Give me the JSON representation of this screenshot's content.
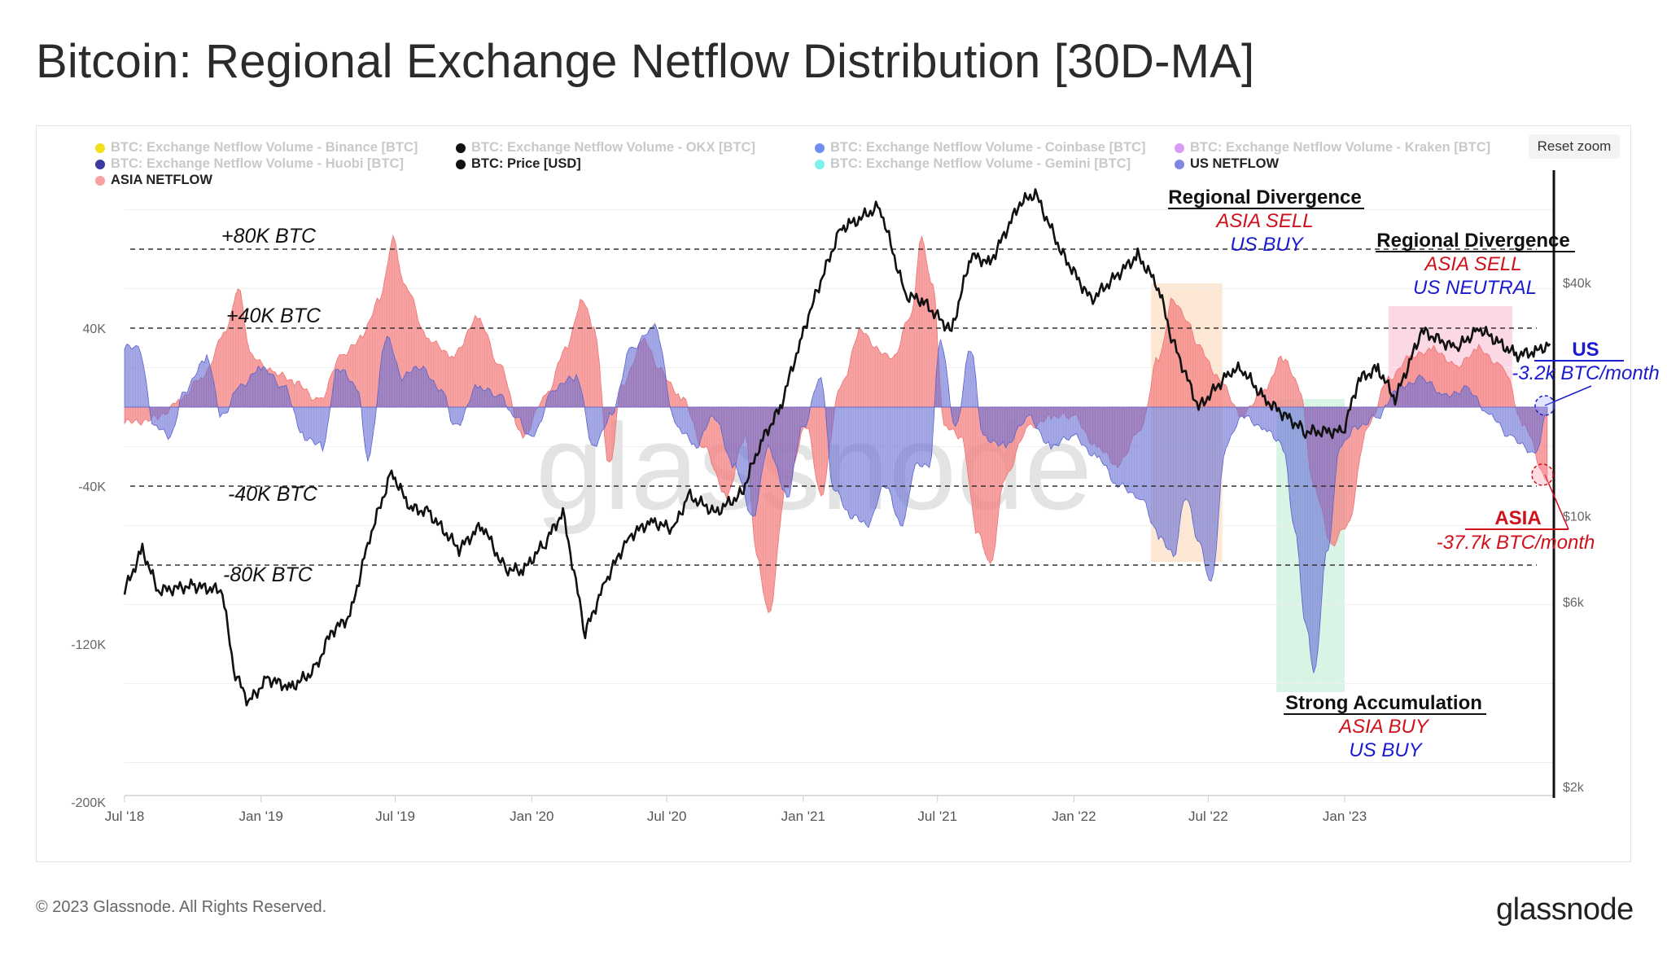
{
  "title": "Bitcoin: Regional Exchange Netflow Distribution [30D-MA]",
  "reset_zoom_label": "Reset zoom",
  "copyright": "© 2023 Glassnode. All Rights Reserved.",
  "brand": "glassnode",
  "watermark": "glassnode",
  "legend": [
    {
      "label": "BTC: Exchange Netflow Volume - Binance [BTC]",
      "color": "#f2e01b",
      "active": false
    },
    {
      "label": "BTC: Exchange Netflow Volume - OKX [BTC]",
      "color": "#111111",
      "active": false
    },
    {
      "label": "BTC: Exchange Netflow Volume - Coinbase [BTC]",
      "color": "#6f8ef0",
      "active": false
    },
    {
      "label": "BTC: Exchange Netflow Volume - Kraken [BTC]",
      "color": "#d79cf2",
      "active": false
    },
    {
      "label": "BTC: Exchange Netflow Volume - Huobi [BTC]",
      "color": "#3a3aa0",
      "active": false
    },
    {
      "label": "BTC: Price [USD]",
      "color": "#111111",
      "active": true
    },
    {
      "label": "BTC: Exchange Netflow Volume - Gemini [BTC]",
      "color": "#7ff0ee",
      "active": false
    },
    {
      "label": "US NETFLOW",
      "color": "#7f87e0",
      "active": true
    },
    {
      "label": "ASIA NETFLOW",
      "color": "#f6a0a0",
      "active": true
    }
  ],
  "annotations": {
    "lvl_p80": "+80K BTC",
    "lvl_p40": "+40K BTC",
    "lvl_m40": "-40K BTC",
    "lvl_m80": "-80K BTC",
    "div1_title": "Regional Divergence",
    "div1_l1": "ASIA SELL",
    "div1_l2": "US BUY",
    "div2_title": "Regional Divergence",
    "div2_l1": "ASIA SELL",
    "div2_l2": "US NEUTRAL",
    "acc_title": "Strong Accumulation",
    "acc_l1": "ASIA BUY",
    "acc_l2": "US BUY",
    "us_title": "US",
    "us_value": "-3.2k BTC/month",
    "asia_title": "ASIA",
    "asia_value": "-37.7k BTC/month"
  },
  "chart_data": {
    "type": "area",
    "x_type": "datetime",
    "x_range": [
      "2018-07-01",
      "2023-10-10"
    ],
    "x_ticks": [
      "Jul '18",
      "Jan '19",
      "Jul '19",
      "Jan '20",
      "Jul '20",
      "Jan '21",
      "Jul '21",
      "Jan '22",
      "Jul '22",
      "Jan '23"
    ],
    "y_left": {
      "label": "",
      "ticks": [
        "40K",
        "-40K",
        "-120K",
        "-200K"
      ],
      "tick_values": [
        40000,
        -40000,
        -120000,
        -200000
      ],
      "range": [
        -200000,
        120000
      ]
    },
    "y_right": {
      "label": "",
      "scale": "log",
      "ticks": [
        "$40k",
        "$10k",
        "$6k",
        "$2k"
      ],
      "tick_values": [
        40000,
        10000,
        6000,
        2000
      ]
    },
    "reference_lines": [
      80000,
      40000,
      -40000,
      -80000
    ],
    "highlight_bands": [
      {
        "from": "2022-04-15",
        "to": "2022-07-20",
        "color": "#f9c79a",
        "label": "Regional Divergence"
      },
      {
        "from": "2022-10-01",
        "to": "2023-01-01",
        "color": "#a4e4c4",
        "label": "Strong Accumulation"
      },
      {
        "from": "2023-03-01",
        "to": "2023-08-15",
        "color": "#f7a5c4",
        "label": "Regional Divergence"
      }
    ],
    "series": [
      {
        "name": "ASIA NETFLOW",
        "color": "#f08080",
        "axis": "left",
        "unit": "BTC",
        "points": [
          [
            "2018-07-01",
            -8000
          ],
          [
            "2018-08-15",
            -6000
          ],
          [
            "2018-09-15",
            5000
          ],
          [
            "2018-10-15",
            15000
          ],
          [
            "2018-11-15",
            40000
          ],
          [
            "2018-12-01",
            60000
          ],
          [
            "2018-12-20",
            25000
          ],
          [
            "2019-01-20",
            18000
          ],
          [
            "2019-02-15",
            12000
          ],
          [
            "2019-03-20",
            4000
          ],
          [
            "2019-04-20",
            25000
          ],
          [
            "2019-05-15",
            35000
          ],
          [
            "2019-06-10",
            55000
          ],
          [
            "2019-06-28",
            85000
          ],
          [
            "2019-07-15",
            60000
          ],
          [
            "2019-08-15",
            35000
          ],
          [
            "2019-09-15",
            25000
          ],
          [
            "2019-10-20",
            45000
          ],
          [
            "2019-11-20",
            20000
          ],
          [
            "2019-12-20",
            -15000
          ],
          [
            "2020-01-20",
            5000
          ],
          [
            "2020-02-15",
            30000
          ],
          [
            "2020-03-10",
            55000
          ],
          [
            "2020-03-25",
            40000
          ],
          [
            "2020-04-15",
            -30000
          ],
          [
            "2020-05-01",
            10000
          ],
          [
            "2020-06-01",
            35000
          ],
          [
            "2020-06-20",
            20000
          ],
          [
            "2020-07-20",
            5000
          ],
          [
            "2020-08-20",
            -20000
          ],
          [
            "2020-09-20",
            -45000
          ],
          [
            "2020-10-15",
            -15000
          ],
          [
            "2020-10-30",
            -75000
          ],
          [
            "2020-11-15",
            -105000
          ],
          [
            "2020-12-10",
            -40000
          ],
          [
            "2021-01-05",
            -10000
          ],
          [
            "2021-01-25",
            -45000
          ],
          [
            "2021-02-20",
            10000
          ],
          [
            "2021-03-20",
            40000
          ],
          [
            "2021-04-10",
            30000
          ],
          [
            "2021-05-01",
            25000
          ],
          [
            "2021-05-25",
            45000
          ],
          [
            "2021-06-10",
            85000
          ],
          [
            "2021-06-25",
            60000
          ],
          [
            "2021-07-10",
            -10000
          ],
          [
            "2021-08-01",
            -15000
          ],
          [
            "2021-08-25",
            -65000
          ],
          [
            "2021-09-10",
            -80000
          ],
          [
            "2021-10-01",
            -35000
          ],
          [
            "2021-11-01",
            -10000
          ],
          [
            "2021-12-01",
            -5000
          ],
          [
            "2022-01-01",
            -5000
          ],
          [
            "2022-02-01",
            -20000
          ],
          [
            "2022-03-01",
            -30000
          ],
          [
            "2022-04-01",
            -10000
          ],
          [
            "2022-04-25",
            25000
          ],
          [
            "2022-05-15",
            55000
          ],
          [
            "2022-06-01",
            45000
          ],
          [
            "2022-06-20",
            30000
          ],
          [
            "2022-07-15",
            15000
          ],
          [
            "2022-08-15",
            -5000
          ],
          [
            "2022-09-15",
            10000
          ],
          [
            "2022-10-10",
            25000
          ],
          [
            "2022-11-01",
            10000
          ],
          [
            "2022-11-20",
            -40000
          ],
          [
            "2022-12-15",
            -70000
          ],
          [
            "2023-01-05",
            -60000
          ],
          [
            "2023-02-01",
            -10000
          ],
          [
            "2023-03-01",
            15000
          ],
          [
            "2023-04-01",
            25000
          ],
          [
            "2023-05-01",
            30000
          ],
          [
            "2023-06-01",
            20000
          ],
          [
            "2023-07-01",
            30000
          ],
          [
            "2023-08-01",
            20000
          ],
          [
            "2023-09-01",
            -10000
          ],
          [
            "2023-10-01",
            -37700
          ]
        ]
      },
      {
        "name": "US NETFLOW",
        "color": "#6d74d8",
        "axis": "left",
        "unit": "BTC",
        "points": [
          [
            "2018-07-01",
            30000
          ],
          [
            "2018-07-20",
            30000
          ],
          [
            "2018-08-10",
            -10000
          ],
          [
            "2018-09-01",
            -15000
          ],
          [
            "2018-09-20",
            8000
          ],
          [
            "2018-10-20",
            25000
          ],
          [
            "2018-11-10",
            -5000
          ],
          [
            "2018-12-01",
            10000
          ],
          [
            "2019-01-01",
            20000
          ],
          [
            "2019-02-01",
            10000
          ],
          [
            "2019-03-01",
            -15000
          ],
          [
            "2019-03-25",
            -20000
          ],
          [
            "2019-04-15",
            20000
          ],
          [
            "2019-05-10",
            10000
          ],
          [
            "2019-05-25",
            -25000
          ],
          [
            "2019-06-20",
            35000
          ],
          [
            "2019-07-10",
            15000
          ],
          [
            "2019-08-01",
            20000
          ],
          [
            "2019-09-01",
            10000
          ],
          [
            "2019-09-20",
            -10000
          ],
          [
            "2019-10-20",
            10000
          ],
          [
            "2019-11-20",
            5000
          ],
          [
            "2019-12-10",
            -5000
          ],
          [
            "2020-01-01",
            -15000
          ],
          [
            "2020-02-01",
            10000
          ],
          [
            "2020-03-01",
            15000
          ],
          [
            "2020-03-25",
            -20000
          ],
          [
            "2020-04-15",
            -5000
          ],
          [
            "2020-05-15",
            30000
          ],
          [
            "2020-06-15",
            40000
          ],
          [
            "2020-07-15",
            -10000
          ],
          [
            "2020-08-10",
            -20000
          ],
          [
            "2020-09-01",
            -5000
          ],
          [
            "2020-10-01",
            -30000
          ],
          [
            "2020-10-25",
            -55000
          ],
          [
            "2020-11-15",
            -20000
          ],
          [
            "2020-12-10",
            -45000
          ],
          [
            "2021-01-01",
            -10000
          ],
          [
            "2021-01-25",
            15000
          ],
          [
            "2021-02-10",
            -40000
          ],
          [
            "2021-03-05",
            -55000
          ],
          [
            "2021-03-30",
            -60000
          ],
          [
            "2021-04-20",
            -40000
          ],
          [
            "2021-05-15",
            -60000
          ],
          [
            "2021-06-01",
            -30000
          ],
          [
            "2021-06-20",
            -30000
          ],
          [
            "2021-07-05",
            35000
          ],
          [
            "2021-07-25",
            -10000
          ],
          [
            "2021-08-15",
            30000
          ],
          [
            "2021-09-01",
            -15000
          ],
          [
            "2021-10-01",
            -20000
          ],
          [
            "2021-11-01",
            -5000
          ],
          [
            "2021-12-01",
            -20000
          ],
          [
            "2022-01-01",
            -15000
          ],
          [
            "2022-02-01",
            -25000
          ],
          [
            "2022-03-01",
            -40000
          ],
          [
            "2022-04-01",
            -45000
          ],
          [
            "2022-04-25",
            -65000
          ],
          [
            "2022-05-15",
            -75000
          ],
          [
            "2022-06-01",
            -45000
          ],
          [
            "2022-06-20",
            -70000
          ],
          [
            "2022-07-05",
            -90000
          ],
          [
            "2022-07-25",
            -20000
          ],
          [
            "2022-08-15",
            -5000
          ],
          [
            "2022-09-15",
            -10000
          ],
          [
            "2022-10-10",
            -20000
          ],
          [
            "2022-10-25",
            -60000
          ],
          [
            "2022-11-10",
            -110000
          ],
          [
            "2022-11-20",
            -135000
          ],
          [
            "2022-12-10",
            -70000
          ],
          [
            "2022-12-25",
            -20000
          ],
          [
            "2023-01-15",
            -10000
          ],
          [
            "2023-02-15",
            -5000
          ],
          [
            "2023-03-15",
            10000
          ],
          [
            "2023-04-15",
            15000
          ],
          [
            "2023-05-15",
            5000
          ],
          [
            "2023-06-15",
            10000
          ],
          [
            "2023-07-15",
            -5000
          ],
          [
            "2023-08-15",
            -15000
          ],
          [
            "2023-09-15",
            -25000
          ],
          [
            "2023-10-01",
            -3200
          ]
        ]
      },
      {
        "name": "BTC: Price [USD]",
        "color": "#111111",
        "axis": "right",
        "unit": "USD",
        "points": [
          [
            "2018-07-01",
            6400
          ],
          [
            "2018-07-25",
            8200
          ],
          [
            "2018-08-15",
            6400
          ],
          [
            "2018-10-01",
            6600
          ],
          [
            "2018-11-10",
            6400
          ],
          [
            "2018-11-25",
            4000
          ],
          [
            "2018-12-15",
            3300
          ],
          [
            "2019-01-10",
            3800
          ],
          [
            "2019-02-10",
            3600
          ],
          [
            "2019-03-15",
            4000
          ],
          [
            "2019-04-05",
            5000
          ],
          [
            "2019-05-01",
            5500
          ],
          [
            "2019-05-25",
            8500
          ],
          [
            "2019-06-26",
            13000
          ],
          [
            "2019-07-20",
            10500
          ],
          [
            "2019-08-15",
            10200
          ],
          [
            "2019-09-25",
            8200
          ],
          [
            "2019-10-26",
            9500
          ],
          [
            "2019-11-25",
            7300
          ],
          [
            "2019-12-20",
            7200
          ],
          [
            "2020-01-20",
            8600
          ],
          [
            "2020-02-12",
            10200
          ],
          [
            "2020-03-13",
            5000
          ],
          [
            "2020-04-10",
            6800
          ],
          [
            "2020-05-10",
            8800
          ],
          [
            "2020-06-10",
            9700
          ],
          [
            "2020-07-10",
            9200
          ],
          [
            "2020-07-30",
            11300
          ],
          [
            "2020-09-05",
            10200
          ],
          [
            "2020-10-10",
            11400
          ],
          [
            "2020-11-05",
            15500
          ],
          [
            "2020-12-01",
            19000
          ],
          [
            "2020-12-30",
            29000
          ],
          [
            "2021-01-15",
            36000
          ],
          [
            "2021-02-20",
            55000
          ],
          [
            "2021-03-15",
            58000
          ],
          [
            "2021-04-14",
            63000
          ],
          [
            "2021-05-19",
            37000
          ],
          [
            "2021-06-10",
            36000
          ],
          [
            "2021-07-20",
            30000
          ],
          [
            "2021-08-15",
            47000
          ],
          [
            "2021-09-10",
            45000
          ],
          [
            "2021-10-20",
            64000
          ],
          [
            "2021-11-10",
            68000
          ],
          [
            "2021-12-15",
            48000
          ],
          [
            "2022-01-24",
            36000
          ],
          [
            "2022-03-28",
            47000
          ],
          [
            "2022-04-25",
            39000
          ],
          [
            "2022-05-12",
            29000
          ],
          [
            "2022-06-18",
            19000
          ],
          [
            "2022-07-30",
            23500
          ],
          [
            "2022-08-15",
            24000
          ],
          [
            "2022-09-15",
            20000
          ],
          [
            "2022-11-09",
            16500
          ],
          [
            "2022-12-30",
            16500
          ],
          [
            "2023-01-20",
            22500
          ],
          [
            "2023-02-15",
            24000
          ],
          [
            "2023-03-10",
            20000
          ],
          [
            "2023-04-15",
            30000
          ],
          [
            "2023-06-01",
            27000
          ],
          [
            "2023-07-01",
            30500
          ],
          [
            "2023-08-20",
            26000
          ],
          [
            "2023-09-15",
            26500
          ],
          [
            "2023-10-05",
            27800
          ]
        ]
      }
    ]
  }
}
